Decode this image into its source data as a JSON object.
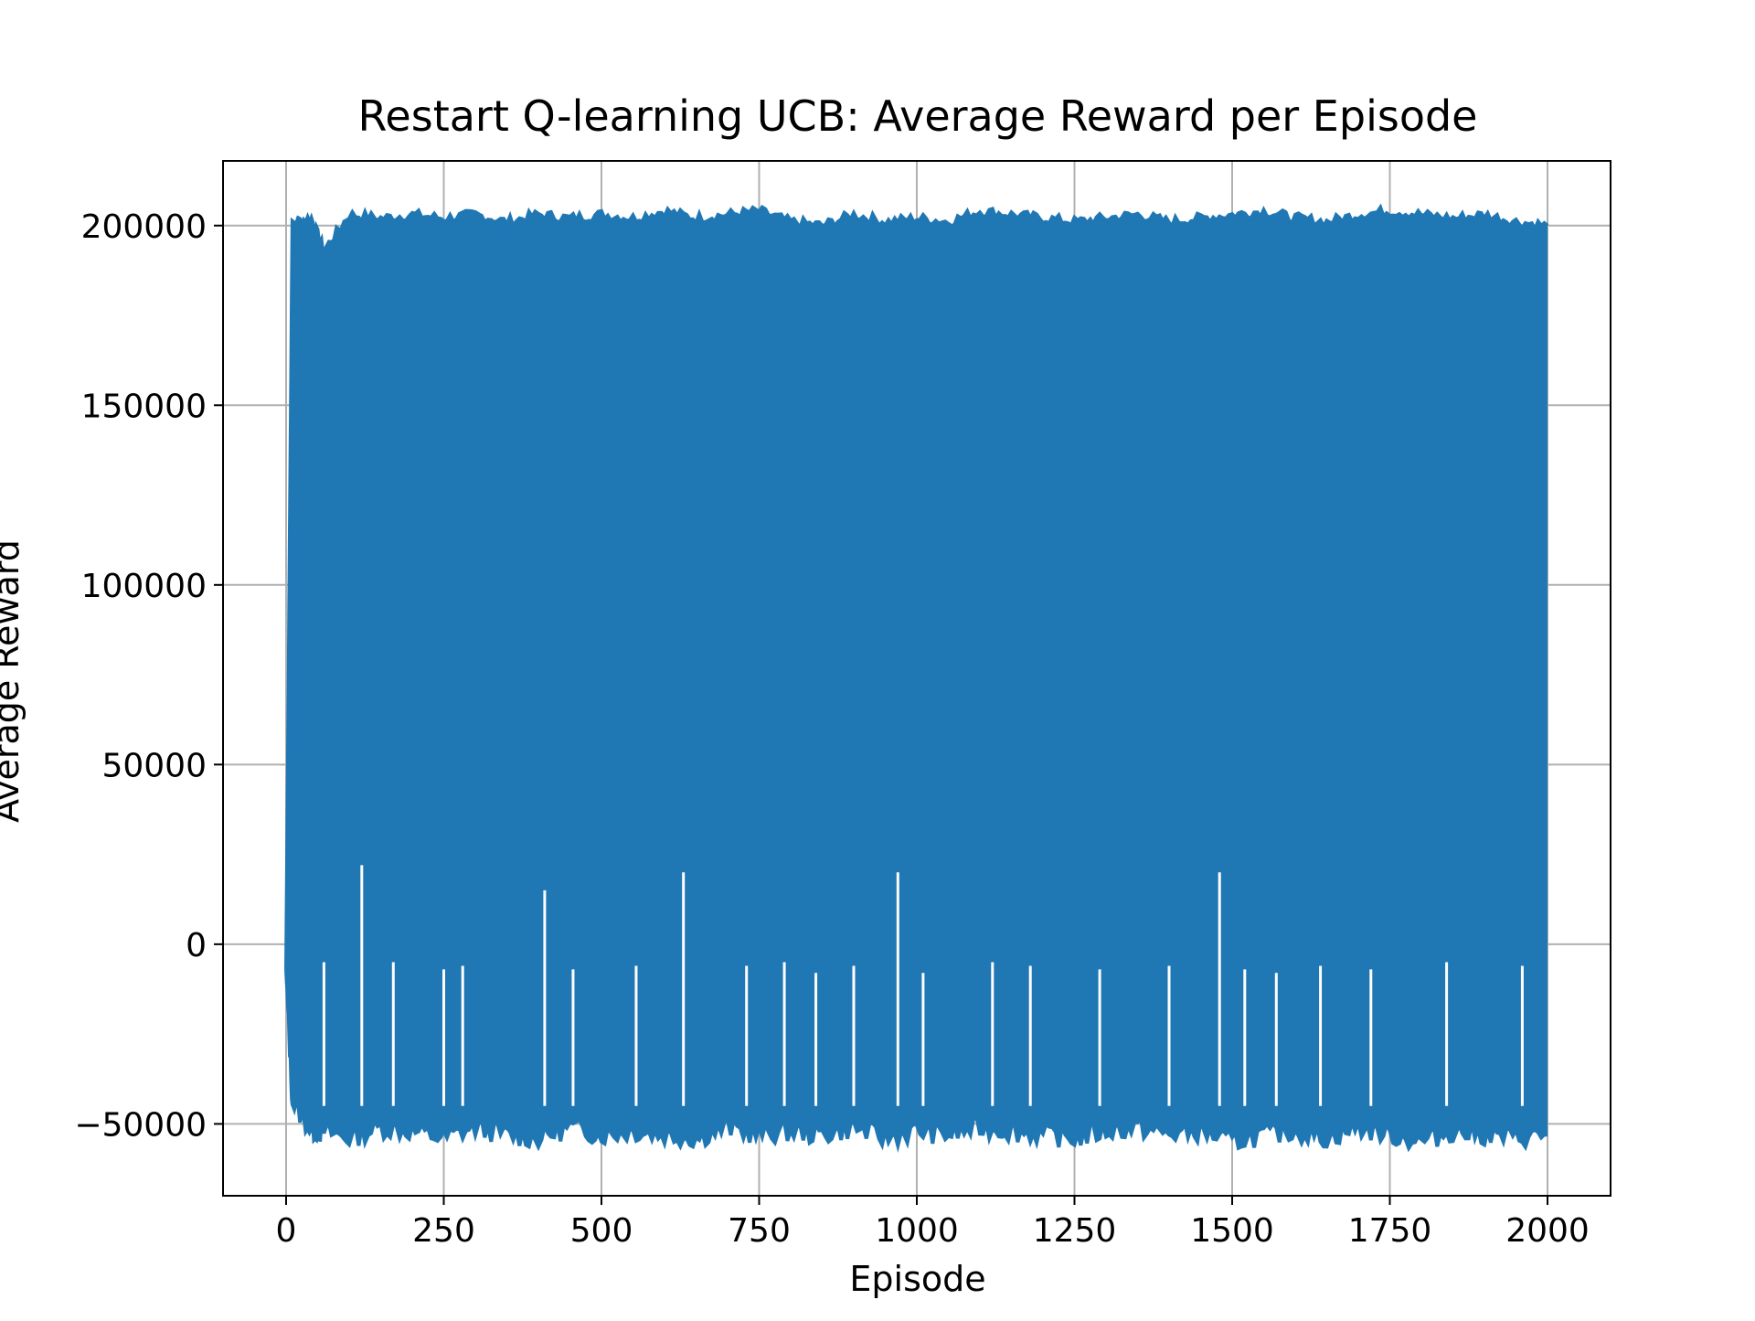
{
  "chart_data": {
    "type": "line",
    "title": "Restart Q-learning UCB: Average Reward per Episode",
    "xlabel": "Episode",
    "ylabel": "Average Reward",
    "xlim": [
      -100,
      2100
    ],
    "ylim": [
      -70000,
      218000
    ],
    "xticks": [
      0,
      250,
      500,
      750,
      1000,
      1250,
      1500,
      1750,
      2000
    ],
    "xtick_labels": [
      "0",
      "250",
      "500",
      "750",
      "1000",
      "1250",
      "1500",
      "1750",
      "2000"
    ],
    "yticks": [
      -50000,
      0,
      50000,
      100000,
      150000,
      200000
    ],
    "ytick_labels": [
      "−50000",
      "0",
      "50000",
      "100000",
      "150000",
      "200000"
    ],
    "grid": true,
    "legend": "none",
    "colors": {
      "series": "#1f77b4",
      "grid": "#b0b0b0",
      "axes": "#000000"
    },
    "series": [
      {
        "episodes": 2000,
        "upper_envelope": {
          "x": [
            0,
            10,
            40,
            60,
            100,
            150,
            200,
            250,
            300,
            350,
            400,
            450,
            500,
            550,
            600,
            650,
            700,
            750,
            800,
            850,
            900,
            950,
            1000,
            1050,
            1100,
            1150,
            1200,
            1250,
            1300,
            1350,
            1400,
            1450,
            1500,
            1550,
            1600,
            1650,
            1700,
            1750,
            1800,
            1850,
            1900,
            1950,
            2000
          ],
          "y": [
            -7000,
            201000,
            202000,
            193000,
            203000,
            202000,
            203000,
            202000,
            203000,
            201000,
            203000,
            202000,
            203000,
            202000,
            204000,
            202000,
            203000,
            204000,
            201000,
            200000,
            203000,
            201000,
            202000,
            201000,
            204000,
            203000,
            202000,
            201000,
            202000,
            203000,
            201000,
            202000,
            203000,
            204000,
            202000,
            201000,
            203000,
            204000,
            203000,
            202000,
            203000,
            201000,
            200000
          ]
        },
        "lower_envelope": {
          "x": [
            0,
            10,
            40,
            60,
            100,
            150,
            200,
            250,
            300,
            350,
            400,
            450,
            500,
            550,
            600,
            650,
            700,
            750,
            800,
            850,
            900,
            950,
            1000,
            1050,
            1100,
            1150,
            1200,
            1250,
            1300,
            1350,
            1400,
            1450,
            1500,
            1550,
            1600,
            1650,
            1700,
            1750,
            1800,
            1850,
            1900,
            1950,
            2000
          ],
          "y": [
            -7000,
            -44000,
            -52000,
            -52000,
            -54000,
            -51000,
            -52000,
            -54000,
            -51000,
            -53000,
            -54000,
            -51000,
            -53000,
            -52000,
            -53000,
            -54000,
            -51000,
            -53000,
            -52000,
            -53000,
            -51000,
            -54000,
            -52000,
            -53000,
            -51000,
            -52000,
            -53000,
            -54000,
            -52000,
            -51000,
            -53000,
            -52000,
            -55000,
            -53000,
            -52000,
            -54000,
            -51000,
            -53000,
            -55000,
            -52000,
            -53000,
            -54000,
            -53000
          ]
        },
        "dips": [
          {
            "x": 60,
            "y": -5000
          },
          {
            "x": 120,
            "y": 22000
          },
          {
            "x": 170,
            "y": -5000
          },
          {
            "x": 250,
            "y": -7000
          },
          {
            "x": 280,
            "y": -6000
          },
          {
            "x": 410,
            "y": 15000
          },
          {
            "x": 455,
            "y": -7000
          },
          {
            "x": 555,
            "y": -6000
          },
          {
            "x": 630,
            "y": 20000
          },
          {
            "x": 730,
            "y": -6000
          },
          {
            "x": 790,
            "y": -5000
          },
          {
            "x": 840,
            "y": -8000
          },
          {
            "x": 900,
            "y": -6000
          },
          {
            "x": 970,
            "y": 20000
          },
          {
            "x": 1010,
            "y": -8000
          },
          {
            "x": 1120,
            "y": -5000
          },
          {
            "x": 1180,
            "y": -6000
          },
          {
            "x": 1290,
            "y": -7000
          },
          {
            "x": 1400,
            "y": -6000
          },
          {
            "x": 1480,
            "y": 20000
          },
          {
            "x": 1520,
            "y": -7000
          },
          {
            "x": 1570,
            "y": -8000
          },
          {
            "x": 1640,
            "y": -6000
          },
          {
            "x": 1720,
            "y": -7000
          },
          {
            "x": 1840,
            "y": -5000
          },
          {
            "x": 1960,
            "y": -6000
          }
        ]
      }
    ]
  }
}
